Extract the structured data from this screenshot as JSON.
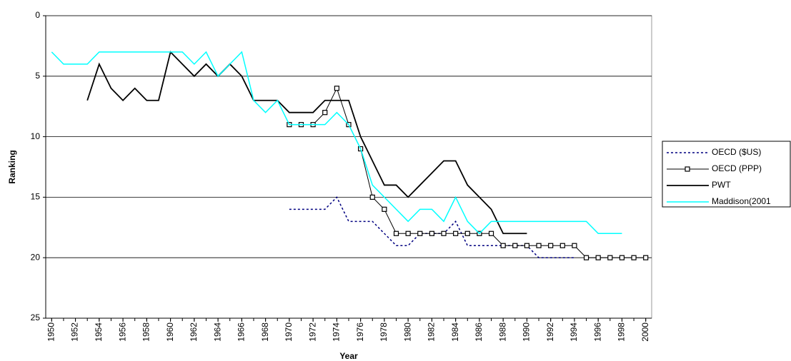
{
  "chart_data": {
    "type": "line",
    "x_label": "Year",
    "y_label": "Ranking",
    "x": [
      1950,
      1951,
      1952,
      1953,
      1954,
      1955,
      1956,
      1957,
      1958,
      1959,
      1960,
      1961,
      1962,
      1963,
      1964,
      1965,
      1966,
      1967,
      1968,
      1969,
      1970,
      1971,
      1972,
      1973,
      1974,
      1975,
      1976,
      1977,
      1978,
      1979,
      1980,
      1981,
      1982,
      1983,
      1984,
      1985,
      1986,
      1987,
      1988,
      1989,
      1990,
      1991,
      1992,
      1993,
      1994,
      1995,
      1996,
      1997,
      1998,
      1999,
      2000
    ],
    "xlim": [
      1949.5,
      2000.5
    ],
    "xticks": [
      1950,
      1952,
      1954,
      1956,
      1958,
      1960,
      1962,
      1964,
      1966,
      1968,
      1970,
      1972,
      1974,
      1976,
      1978,
      1980,
      1982,
      1984,
      1986,
      1988,
      1990,
      1992,
      1994,
      1996,
      1998,
      2000
    ],
    "ylim": [
      0,
      25
    ],
    "y_inverted": true,
    "yticks": [
      0,
      5,
      10,
      15,
      20,
      25
    ],
    "grid": true,
    "legend": "right",
    "series": [
      {
        "name": "OECD ($US)",
        "color": "#000080",
        "style": "dashed",
        "marker": null,
        "values": [
          null,
          null,
          null,
          null,
          null,
          null,
          null,
          null,
          null,
          null,
          null,
          null,
          null,
          null,
          null,
          null,
          null,
          null,
          null,
          null,
          16,
          16,
          16,
          16,
          15,
          17,
          17,
          17,
          18,
          19,
          19,
          18,
          18,
          18,
          17,
          19,
          19,
          19,
          19,
          19,
          19,
          20,
          20,
          20,
          20,
          null,
          null,
          null,
          null,
          null,
          null
        ]
      },
      {
        "name": "OECD (PPP)",
        "color": "#000000",
        "style": "solid",
        "marker": "square",
        "values": [
          null,
          null,
          null,
          null,
          null,
          null,
          null,
          null,
          null,
          null,
          null,
          null,
          null,
          null,
          null,
          null,
          null,
          null,
          null,
          null,
          9,
          9,
          9,
          8,
          6,
          9,
          11,
          15,
          16,
          18,
          18,
          18,
          18,
          18,
          18,
          18,
          18,
          18,
          19,
          19,
          19,
          19,
          19,
          19,
          19,
          20,
          20,
          20,
          20,
          20,
          20
        ]
      },
      {
        "name": "PWT",
        "color": "#000000",
        "style": "thick",
        "marker": null,
        "values": [
          null,
          null,
          null,
          7,
          4,
          6,
          7,
          6,
          7,
          7,
          3,
          4,
          5,
          4,
          5,
          4,
          5,
          7,
          7,
          7,
          8,
          8,
          8,
          7,
          7,
          7,
          10,
          12,
          14,
          14,
          15,
          14,
          13,
          12,
          12,
          14,
          15,
          16,
          18,
          18,
          18,
          null,
          null,
          null,
          null,
          null,
          null,
          null,
          null,
          null,
          null
        ]
      },
      {
        "name": "Maddison(2001",
        "color": "#00ffff",
        "style": "solid",
        "marker": null,
        "values": [
          3,
          4,
          4,
          4,
          3,
          3,
          3,
          3,
          3,
          3,
          3,
          3,
          4,
          3,
          5,
          4,
          3,
          7,
          8,
          7,
          9,
          9,
          9,
          9,
          8,
          9,
          11,
          14,
          15,
          16,
          17,
          16,
          16,
          17,
          15,
          17,
          18,
          17,
          17,
          17,
          17,
          17,
          17,
          17,
          17,
          17,
          18,
          18,
          18,
          null,
          null
        ]
      }
    ]
  }
}
